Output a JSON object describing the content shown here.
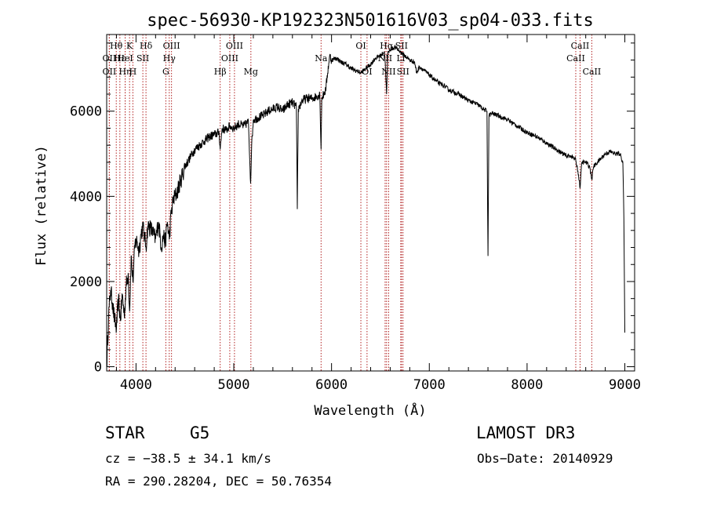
{
  "chart_data": {
    "type": "line",
    "title": "spec-56930-KP192323N501616V03_sp04-033.fits",
    "xlabel": "Wavelength (Å)",
    "ylabel": "Flux (relative)",
    "xlim": [
      3700,
      9100
    ],
    "ylim": [
      -100,
      7800
    ],
    "xticks": [
      4000,
      5000,
      6000,
      7000,
      8000,
      9000
    ],
    "yticks": [
      0,
      2000,
      4000,
      6000
    ],
    "xtick_labels": [
      "4000",
      "5000",
      "6000",
      "7000",
      "8000",
      "9000"
    ],
    "ytick_labels": [
      "0",
      "2000",
      "4000",
      "6000"
    ],
    "series": [
      {
        "color": "#000000",
        "x": [
          3700,
          3720,
          3740,
          3760,
          3780,
          3800,
          3820,
          3840,
          3860,
          3880,
          3900,
          3920,
          3934,
          3950,
          3968,
          3990,
          4010,
          4030,
          4050,
          4070,
          4090,
          4102,
          4120,
          4150,
          4180,
          4200,
          4230,
          4260,
          4280,
          4300,
          4320,
          4340,
          4360,
          4380,
          4420,
          4460,
          4500,
          4550,
          4600,
          4650,
          4700,
          4750,
          4800,
          4850,
          4861,
          4880,
          4920,
          4960,
          5000,
          5050,
          5100,
          5150,
          5172,
          5183,
          5200,
          5250,
          5300,
          5350,
          5400,
          5450,
          5500,
          5550,
          5600,
          5640,
          5650,
          5660,
          5700,
          5750,
          5800,
          5850,
          5880,
          5893,
          5900,
          5920,
          5940,
          5960,
          5980,
          6000,
          6050,
          6100,
          6150,
          6200,
          6250,
          6300,
          6350,
          6400,
          6450,
          6500,
          6540,
          6550,
          6563,
          6575,
          6600,
          6650,
          6700,
          6750,
          6800,
          6850,
          6870,
          6900,
          6950,
          7000,
          7050,
          7100,
          7150,
          7200,
          7250,
          7300,
          7400,
          7500,
          7550,
          7590,
          7600,
          7610,
          7640,
          7700,
          7800,
          7900,
          8000,
          8100,
          8200,
          8300,
          8400,
          8450,
          8498,
          8520,
          8542,
          8560,
          8600,
          8640,
          8662,
          8680,
          8720,
          8760,
          8800,
          8850,
          8900,
          8950,
          8980,
          8990,
          9000
        ],
        "y": [
          50,
          1200,
          1800,
          1500,
          1100,
          900,
          1600,
          1100,
          1700,
          1200,
          1900,
          2200,
          1300,
          2600,
          2000,
          2900,
          2950,
          2700,
          3100,
          3300,
          3000,
          2800,
          3300,
          3250,
          3100,
          3000,
          3400,
          2800,
          3100,
          2900,
          3400,
          3000,
          3600,
          3900,
          4100,
          4400,
          4700,
          4900,
          5100,
          5200,
          5300,
          5400,
          5450,
          5500,
          5100,
          5600,
          5550,
          5650,
          5600,
          5700,
          5650,
          5750,
          4300,
          5200,
          5800,
          5850,
          5900,
          6000,
          6050,
          6100,
          6000,
          6150,
          6200,
          6100,
          3700,
          6050,
          6250,
          6300,
          6300,
          6350,
          6400,
          5100,
          6300,
          6400,
          6500,
          6900,
          7300,
          7200,
          7250,
          7150,
          7100,
          7000,
          6950,
          6900,
          7000,
          7100,
          7250,
          7300,
          7400,
          7100,
          6400,
          7350,
          7450,
          7500,
          7400,
          7300,
          7200,
          7150,
          6900,
          7050,
          6950,
          6850,
          6750,
          6650,
          6600,
          6500,
          6450,
          6400,
          6250,
          6150,
          6050,
          6000,
          2600,
          5900,
          5950,
          5900,
          5800,
          5650,
          5500,
          5400,
          5250,
          5100,
          4950,
          4950,
          4850,
          4600,
          4200,
          4800,
          4800,
          4700,
          4400,
          4700,
          4800,
          4900,
          5000,
          5050,
          5000,
          5000,
          4800,
          3500,
          800
        ]
      }
    ],
    "spectral_lines": [
      {
        "name": "Hθ",
        "x": 3798,
        "row": 1
      },
      {
        "name": "OII",
        "x": 3727,
        "row": 2
      },
      {
        "name": "OII",
        "x": 3727,
        "row": 3
      },
      {
        "name": "Hε",
        "x": 3835,
        "row": 2
      },
      {
        "name": "Hη",
        "x": 3889,
        "row": 3
      },
      {
        "name": "K",
        "x": 3934,
        "row": 1
      },
      {
        "name": "HeI",
        "x": 3889,
        "row": 2
      },
      {
        "name": "H",
        "x": 3968,
        "row": 3
      },
      {
        "name": "SII",
        "x": 4070,
        "row": 2
      },
      {
        "name": "Hδ",
        "x": 4102,
        "row": 1
      },
      {
        "name": "OIII",
        "x": 4363,
        "row": 1
      },
      {
        "name": "Hγ",
        "x": 4340,
        "row": 2
      },
      {
        "name": "G",
        "x": 4305,
        "row": 3
      },
      {
        "name": "Hβ",
        "x": 4861,
        "row": 3
      },
      {
        "name": "OIII",
        "x": 5007,
        "row": 1
      },
      {
        "name": "OIII",
        "x": 4959,
        "row": 2
      },
      {
        "name": "Mg",
        "x": 5175,
        "row": 3
      },
      {
        "name": "Na",
        "x": 5893,
        "row": 2
      },
      {
        "name": "OI",
        "x": 6300,
        "row": 1
      },
      {
        "name": "OI",
        "x": 6363,
        "row": 3
      },
      {
        "name": "Hα",
        "x": 6563,
        "row": 1
      },
      {
        "name": "SII",
        "x": 6716,
        "row": 1
      },
      {
        "name": "NII",
        "x": 6548,
        "row": 2
      },
      {
        "name": "Li",
        "x": 6708,
        "row": 2
      },
      {
        "name": "NII",
        "x": 6584,
        "row": 3
      },
      {
        "name": "SII",
        "x": 6731,
        "row": 3
      },
      {
        "name": "CaII",
        "x": 8542,
        "row": 1
      },
      {
        "name": "CaII",
        "x": 8498,
        "row": 2
      },
      {
        "name": "CaII",
        "x": 8662,
        "row": 3
      }
    ]
  },
  "info": {
    "class": "STAR",
    "subclass": "G5",
    "survey": "LAMOST DR3",
    "cz": "cz = −38.5 ± 34.1 km/s",
    "obs_date": "Obs−Date: 20140929",
    "radec": "RA = 290.28204, DEC =  50.76354"
  }
}
